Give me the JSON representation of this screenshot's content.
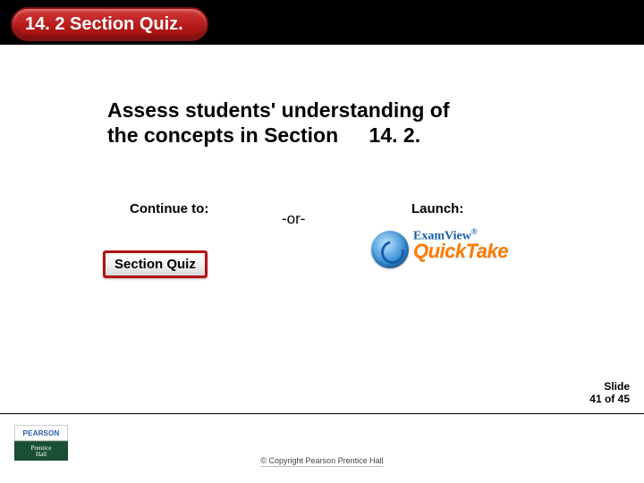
{
  "header": {
    "title": "14. 2 Section Quiz."
  },
  "instruction": {
    "line1": "Assess students' understanding of",
    "line2a": "the concepts in Section",
    "section_number": "14. 2."
  },
  "options": {
    "continue_label": "Continue to:",
    "or_label": "-or-",
    "launch_label": "Launch:",
    "section_quiz_button": "Section Quiz",
    "examview_brand": "ExamView",
    "examview_reg": "®",
    "quicktake_brand": "QuickTake"
  },
  "footer": {
    "pearson": "PEARSON",
    "prentice1": "Prentice",
    "prentice2": "Hall",
    "slide_label": "Slide",
    "slide_counter": "41 of 45",
    "copyright": "© Copyright Pearson Prentice Hall"
  },
  "colors": {
    "pill_bg": "#b41818",
    "btn_border": "#b01414",
    "quicktake": "#ff7a00",
    "examview": "#1560a6",
    "prentice_bg": "#1a4f33"
  }
}
